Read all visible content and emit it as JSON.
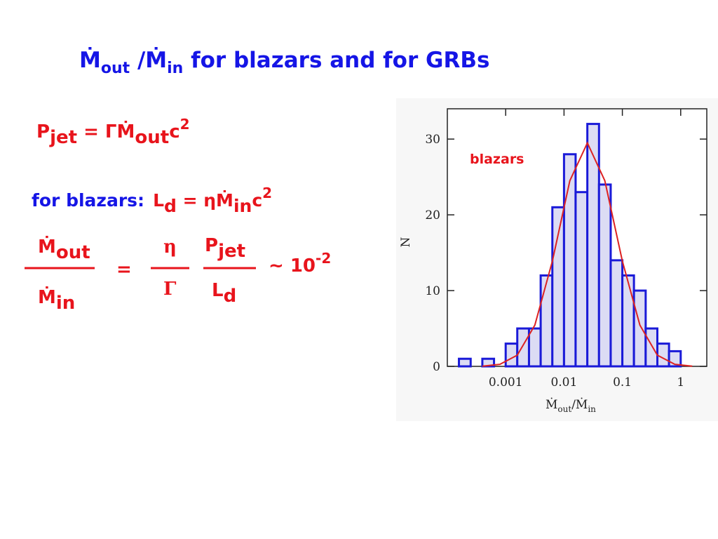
{
  "slide": {
    "title": [
      "Ṁ",
      "out",
      " /Ṁ",
      "in",
      " for blazars and for GRBs"
    ],
    "jet_power": [
      "P",
      "jet",
      " = ΓṀ",
      "out",
      "c",
      "2"
    ],
    "disk_lum_intro": "for blazars:",
    "disk_lum": [
      "L",
      "d",
      " = ηṀ",
      "in",
      "c",
      "2"
    ],
    "ratio_num": [
      "Ṁ",
      "out"
    ],
    "ratio_den": [
      "Ṁ",
      "in"
    ],
    "equals": "=",
    "eta": "η",
    "gamma": "Γ",
    "pjet": [
      "P",
      "jet"
    ],
    "ld": [
      "L",
      "d"
    ],
    "approx": [
      "~ 10",
      "-2"
    ]
  },
  "chart_data": {
    "type": "histogram",
    "bins": [
      0.000158,
      0.000251,
      0.000398,
      0.000631,
      0.001,
      0.00158,
      0.00251,
      0.00398,
      0.00631,
      0.01,
      0.0158,
      0.0251,
      0.0398,
      0.0631,
      0.1,
      0.158,
      0.251,
      0.398,
      0.631,
      1
    ],
    "values": [
      1,
      0,
      1,
      0,
      3,
      5,
      5,
      12,
      21,
      28,
      23,
      32,
      24,
      14,
      12,
      10,
      5,
      3,
      2
    ],
    "color": "#1a1ad8",
    "fill": "#dcdcf4",
    "fit": {
      "x": [
        0.000398,
        0.000794,
        0.00158,
        0.00316,
        0.00631,
        0.0126,
        0.0251,
        0.0501,
        0.1,
        0.2,
        0.398,
        0.794,
        1.58
      ],
      "values": [
        0.03,
        0.27,
        1.47,
        5.45,
        13.9,
        24.5,
        29.5,
        24.5,
        13.9,
        5.45,
        1.47,
        0.27,
        0.03
      ],
      "color": "#dd2222"
    },
    "annotation": "blazars",
    "xlabel": [
      "Ṁ",
      "out",
      "/Ṁ",
      "in"
    ],
    "ylabel": "N",
    "xscale": "log",
    "xlim": [
      0.0001,
      2.8
    ],
    "xticks": [
      0.001,
      0.01,
      0.1,
      1
    ],
    "ylim": [
      0,
      34
    ],
    "yticks": [
      0,
      10,
      20,
      30
    ]
  }
}
